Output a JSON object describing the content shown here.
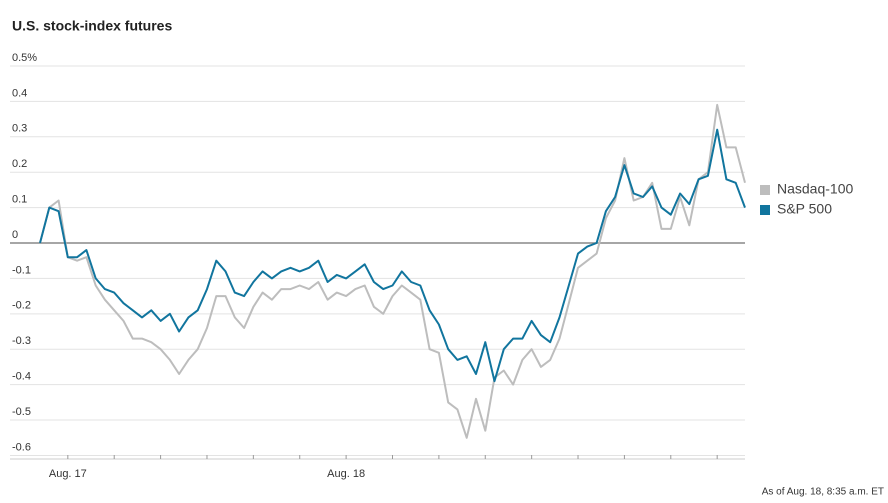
{
  "chart_data": {
    "type": "line",
    "title": "U.S. stock-index futures",
    "note": "As of Aug. 18, 8:35 a.m. ET",
    "categories": [
      null,
      null,
      null,
      "Aug. 17",
      null,
      null,
      null,
      null,
      null,
      null,
      null,
      null,
      null,
      null,
      null,
      null,
      null,
      null,
      null,
      null,
      null,
      null,
      null,
      null,
      null,
      null,
      null,
      null,
      null,
      null,
      null,
      null,
      null,
      "Aug. 18",
      null,
      null,
      null,
      null,
      null,
      null,
      null,
      null,
      null,
      null,
      null,
      null,
      null,
      null,
      null,
      null,
      null,
      null,
      null,
      null,
      null,
      null,
      null,
      null,
      null,
      null,
      null,
      null,
      null,
      null,
      null,
      null,
      null,
      null,
      null,
      null,
      null,
      null,
      null,
      null,
      null,
      null,
      null
    ],
    "series": [
      {
        "name": "Nasdaq-100",
        "color": "#bdbdbd",
        "values": [
          0,
          0.1,
          0.12,
          -0.04,
          -0.05,
          -0.04,
          -0.12,
          -0.16,
          -0.19,
          -0.22,
          -0.27,
          -0.27,
          -0.28,
          -0.3,
          -0.33,
          -0.37,
          -0.33,
          -0.3,
          -0.24,
          -0.15,
          -0.15,
          -0.21,
          -0.24,
          -0.18,
          -0.14,
          -0.16,
          -0.13,
          -0.13,
          -0.12,
          -0.13,
          -0.11,
          -0.16,
          -0.14,
          -0.15,
          -0.13,
          -0.12,
          -0.18,
          -0.2,
          -0.15,
          -0.12,
          -0.14,
          -0.16,
          -0.3,
          -0.31,
          -0.45,
          -0.47,
          -0.55,
          -0.44,
          -0.53,
          -0.38,
          -0.36,
          -0.4,
          -0.33,
          -0.3,
          -0.35,
          -0.33,
          -0.27,
          -0.17,
          -0.07,
          -0.05,
          -0.03,
          0.07,
          0.12,
          0.24,
          0.12,
          0.13,
          0.17,
          0.04,
          0.04,
          0.13,
          0.05,
          0.18,
          0.2,
          0.39,
          0.27,
          0.27,
          0.17
        ]
      },
      {
        "name": "S&P 500",
        "color": "#11759e",
        "values": [
          0,
          0.1,
          0.09,
          -0.04,
          -0.04,
          -0.02,
          -0.1,
          -0.13,
          -0.14,
          -0.17,
          -0.19,
          -0.21,
          -0.19,
          -0.22,
          -0.2,
          -0.25,
          -0.21,
          -0.19,
          -0.13,
          -0.05,
          -0.08,
          -0.14,
          -0.15,
          -0.11,
          -0.08,
          -0.1,
          -0.08,
          -0.07,
          -0.08,
          -0.07,
          -0.05,
          -0.11,
          -0.09,
          -0.1,
          -0.08,
          -0.06,
          -0.11,
          -0.13,
          -0.12,
          -0.08,
          -0.11,
          -0.12,
          -0.19,
          -0.23,
          -0.3,
          -0.33,
          -0.32,
          -0.37,
          -0.28,
          -0.39,
          -0.3,
          -0.27,
          -0.27,
          -0.22,
          -0.26,
          -0.28,
          -0.21,
          -0.12,
          -0.03,
          -0.01,
          0.0,
          0.09,
          0.13,
          0.22,
          0.14,
          0.13,
          0.16,
          0.1,
          0.08,
          0.14,
          0.11,
          0.18,
          0.19,
          0.32,
          0.18,
          0.17,
          0.1
        ]
      }
    ],
    "ylim": [
      -0.61,
      0.5
    ],
    "yticks": [
      {
        "value": 0.5,
        "label": "0.5%"
      },
      0.4,
      0.3,
      0.2,
      0.1,
      0,
      -0.1,
      -0.2,
      -0.3,
      -0.4,
      -0.5,
      -0.6
    ],
    "grid": true
  }
}
